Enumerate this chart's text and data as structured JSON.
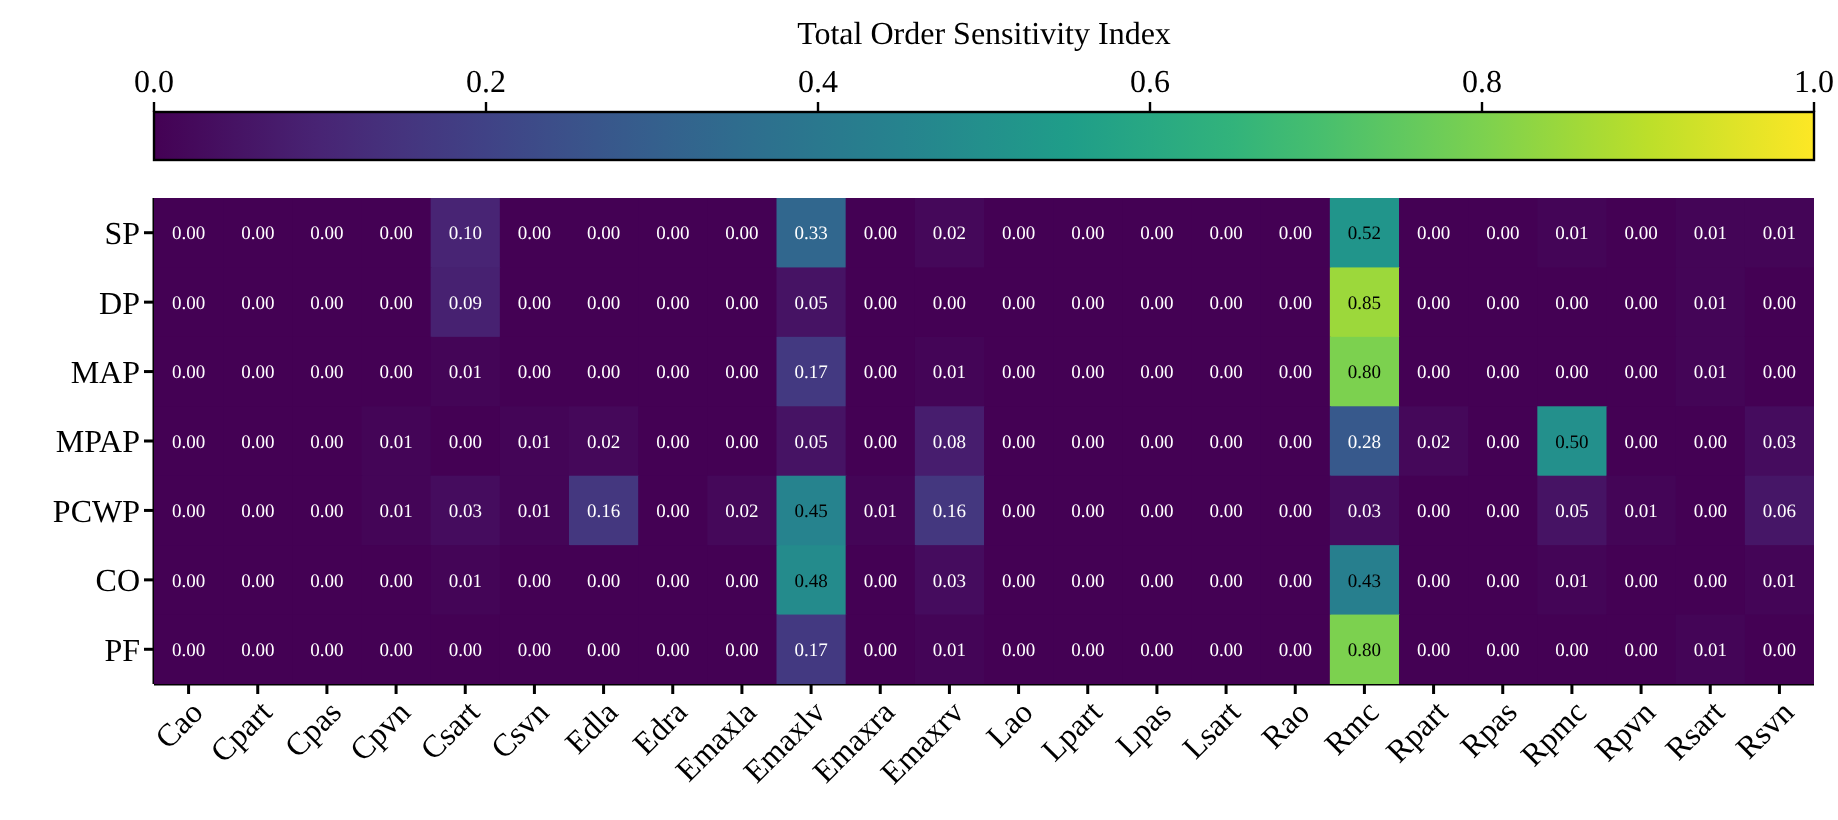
{
  "chart_data": {
    "type": "heatmap",
    "clabel": "Total Order Sensitivity Index",
    "categories": [
      "Cao",
      "Cpart",
      "Cpas",
      "Cpvn",
      "Csart",
      "Csvn",
      "Edla",
      "Edra",
      "Emaxla",
      "Emaxlv",
      "Emaxra",
      "Emaxrv",
      "Lao",
      "Lpart",
      "Lpas",
      "Lsart",
      "Rao",
      "Rmc",
      "Rpart",
      "Rpas",
      "Rpmc",
      "Rpvn",
      "Rsart",
      "Rsvn"
    ],
    "y_categories": [
      "SP",
      "DP",
      "MAP",
      "MPAP",
      "PCWP",
      "CO",
      "PF"
    ],
    "cells": [
      [
        0,
        0,
        0,
        0,
        0.1,
        0,
        0,
        0,
        0,
        0.33,
        0,
        0.02,
        0,
        0,
        0,
        0,
        0,
        0.52,
        0,
        0,
        0.01,
        0,
        0.01,
        0.01
      ],
      [
        0,
        0,
        0,
        0,
        0.09,
        0,
        0,
        0,
        0,
        0.05,
        0,
        0,
        0,
        0,
        0,
        0,
        0,
        0.85,
        0,
        0,
        0,
        0,
        0.01,
        0
      ],
      [
        0,
        0,
        0,
        0,
        0.01,
        0,
        0,
        0,
        0,
        0.17,
        0,
        0.01,
        0,
        0,
        0,
        0,
        0,
        0.8,
        0,
        0,
        0,
        0,
        0.01,
        0
      ],
      [
        0,
        0,
        0,
        0.01,
        0,
        0.01,
        0.02,
        0,
        0,
        0.05,
        0,
        0.08,
        0,
        0,
        0,
        0,
        0,
        0.28,
        0.02,
        0,
        0.5,
        0,
        0,
        0.03
      ],
      [
        0,
        0,
        0,
        0.01,
        0.03,
        0.01,
        0.16,
        0,
        0.02,
        0.45,
        0.01,
        0.16,
        0,
        0,
        0,
        0,
        0,
        0.03,
        0,
        0,
        0.05,
        0.01,
        0,
        0.06
      ],
      [
        0,
        0,
        0,
        0,
        0.01,
        0,
        0,
        0,
        0,
        0.48,
        0,
        0.03,
        0,
        0,
        0,
        0,
        0,
        0.43,
        0,
        0,
        0.01,
        0,
        0,
        0.01
      ],
      [
        0,
        0,
        0,
        0,
        0,
        0,
        0,
        0,
        0,
        0.17,
        0,
        0.01,
        0,
        0,
        0,
        0,
        0,
        0.8,
        0,
        0,
        0,
        0,
        0.01,
        0
      ]
    ],
    "cell_labels": [
      [
        "0.00",
        "0.00",
        "0.00",
        "0.00",
        "0.10",
        "0.00",
        "0.00",
        "0.00",
        "0.00",
        "0.33",
        "0.00",
        "0.02",
        "0.00",
        "0.00",
        "0.00",
        "0.00",
        "0.00",
        "0.52",
        "0.00",
        "0.00",
        "0.01",
        "0.00",
        "0.01",
        "0.01"
      ],
      [
        "0.00",
        "0.00",
        "0.00",
        "0.00",
        "0.09",
        "0.00",
        "0.00",
        "0.00",
        "0.00",
        "0.05",
        "0.00",
        "0.00",
        "0.00",
        "0.00",
        "0.00",
        "0.00",
        "0.00",
        "0.85",
        "0.00",
        "0.00",
        "0.00",
        "0.00",
        "0.01",
        "0.00"
      ],
      [
        "0.00",
        "0.00",
        "0.00",
        "0.00",
        "0.01",
        "0.00",
        "0.00",
        "0.00",
        "0.00",
        "0.17",
        "0.00",
        "0.01",
        "0.00",
        "0.00",
        "0.00",
        "0.00",
        "0.00",
        "0.80",
        "0.00",
        "0.00",
        "0.00",
        "0.00",
        "0.01",
        "0.00"
      ],
      [
        "0.00",
        "0.00",
        "0.00",
        "0.01",
        "0.00",
        "0.01",
        "0.02",
        "0.00",
        "0.00",
        "0.05",
        "0.00",
        "0.08",
        "0.00",
        "0.00",
        "0.00",
        "0.00",
        "0.00",
        "0.28",
        "0.02",
        "0.00",
        "0.50",
        "0.00",
        "0.00",
        "0.03"
      ],
      [
        "0.00",
        "0.00",
        "0.00",
        "0.01",
        "0.03",
        "0.01",
        "0.16",
        "0.00",
        "0.02",
        "0.45",
        "0.01",
        "0.16",
        "0.00",
        "0.00",
        "0.00",
        "0.00",
        "0.00",
        "0.03",
        "0.00",
        "0.00",
        "0.05",
        "0.01",
        "0.00",
        "0.06"
      ],
      [
        "0.00",
        "0.00",
        "0.00",
        "0.00",
        "0.01",
        "0.00",
        "0.00",
        "0.00",
        "0.00",
        "0.48",
        "0.00",
        "0.03",
        "0.00",
        "0.00",
        "0.00",
        "0.00",
        "0.00",
        "0.43",
        "0.00",
        "0.00",
        "0.01",
        "0.00",
        "0.00",
        "0.01"
      ],
      [
        "0.00",
        "0.00",
        "0.00",
        "0.00",
        "0.00",
        "0.00",
        "0.00",
        "0.00",
        "0.00",
        "0.17",
        "0.00",
        "0.01",
        "0.00",
        "0.00",
        "0.00",
        "0.00",
        "0.00",
        "0.80",
        "0.00",
        "0.00",
        "0.00",
        "0.00",
        "0.01",
        "0.00"
      ]
    ],
    "clim": [
      0,
      1
    ],
    "cticks": [
      {
        "value": 0,
        "label": "0.0"
      },
      {
        "value": 0.2,
        "label": "0.2"
      },
      {
        "value": 0.4,
        "label": "0.4"
      },
      {
        "value": 0.6,
        "label": "0.6"
      },
      {
        "value": 0.8,
        "label": "0.8"
      },
      {
        "value": 1,
        "label": "1.0"
      }
    ]
  }
}
